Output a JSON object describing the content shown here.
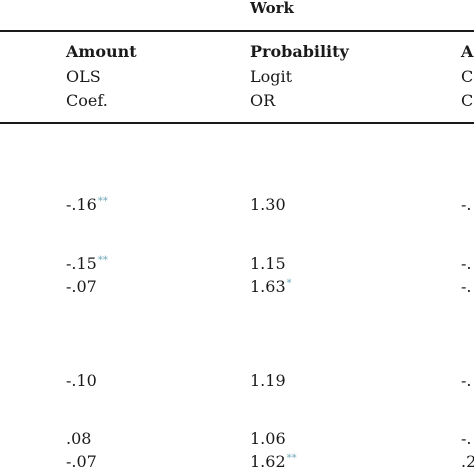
{
  "table": {
    "group_label": "Work",
    "columns": [
      {
        "heading": "Amount",
        "model": "OLS",
        "stat": "Coef."
      },
      {
        "heading": "Probability",
        "model": "Logit",
        "stat": "OR"
      },
      {
        "heading": "A",
        "model": "C",
        "stat": "C"
      }
    ],
    "rows": [
      {
        "amount": "-.16",
        "amount_sig": "**",
        "prob": "1.30",
        "prob_sig": "",
        "col3": "-."
      },
      {
        "amount": "-.15",
        "amount_sig": "**",
        "prob": "1.15",
        "prob_sig": "",
        "col3": "-."
      },
      {
        "amount": "-.07",
        "amount_sig": "",
        "prob": "1.63",
        "prob_sig": "*",
        "col3": "-."
      },
      {
        "amount": "-.10",
        "amount_sig": "",
        "prob": "1.19",
        "prob_sig": "",
        "col3": "-."
      },
      {
        "amount": ".08",
        "amount_sig": "",
        "prob": "1.06",
        "prob_sig": "",
        "col3": "-."
      },
      {
        "amount": "-.07",
        "amount_sig": "",
        "prob": "1.62",
        "prob_sig": "**",
        "col3": ".2"
      }
    ]
  }
}
